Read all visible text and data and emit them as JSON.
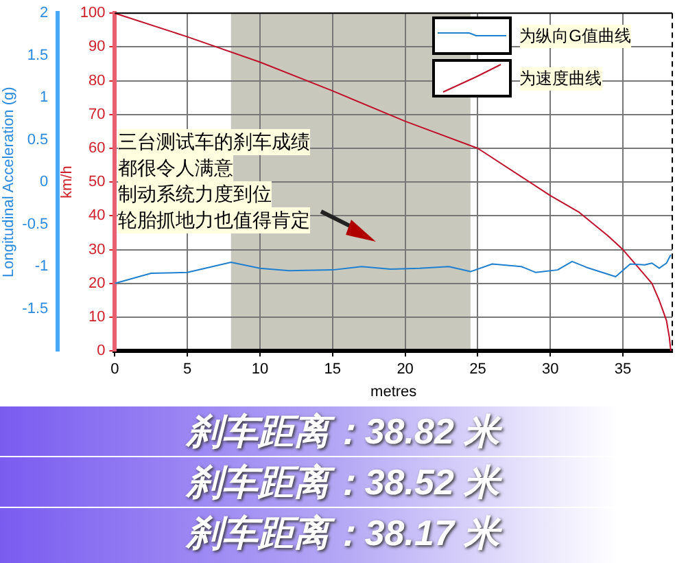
{
  "chart_data": {
    "type": "line",
    "xlabel": "metres",
    "ylabel": "km/h",
    "y2label": "Longitudinal Acceleration (g)",
    "xlim": [
      0,
      38.4
    ],
    "xticks": [
      0,
      5,
      10,
      15,
      20,
      25,
      30,
      35
    ],
    "ylim": [
      0,
      100
    ],
    "yticks": [
      0,
      10,
      20,
      30,
      40,
      50,
      60,
      70,
      80,
      90,
      100
    ],
    "y2lim": [
      -2,
      2
    ],
    "y2ticks": [
      -1.5,
      -1,
      -0.5,
      0,
      0.5,
      1,
      1.5,
      2
    ],
    "grid": true,
    "legend": "top right",
    "marker": "none",
    "line_style": "solid",
    "bands": [
      {
        "axis": "x",
        "from": 8,
        "to": 24.5,
        "color": "#c8c8bc"
      }
    ],
    "series": [
      {
        "name": "为纵向G值曲线",
        "color": "#1f7fcf",
        "axis": "y2",
        "x": [
          0,
          2.5,
          5,
          8,
          10,
          12,
          15,
          17,
          19,
          21,
          23,
          24.5,
          26,
          28,
          29,
          30.5,
          31.5,
          32.5,
          34.5,
          35.5,
          36.5,
          37,
          37.5,
          38,
          38.3
        ],
        "values": [
          -1.2,
          -1.08,
          -1.07,
          -0.95,
          -1.02,
          -1.05,
          -1.04,
          -1.0,
          -1.03,
          -1.02,
          -1.0,
          -1.06,
          -0.97,
          -1.0,
          -1.07,
          -1.04,
          -0.94,
          -1.01,
          -1.12,
          -0.97,
          -0.98,
          -0.96,
          -1.02,
          -0.96,
          -0.86
        ]
      },
      {
        "name": "为速度曲线",
        "color": "#c0102a",
        "x": [
          0,
          5,
          10,
          15,
          20,
          25,
          30,
          32,
          34,
          35,
          36,
          37,
          37.5,
          38,
          38.2,
          38.3
        ],
        "values": [
          100,
          93,
          85.5,
          77,
          68,
          60,
          46,
          41,
          34,
          30,
          25,
          20,
          15,
          9,
          4,
          0
        ]
      }
    ],
    "annotations": [
      "三台测试车的刹车成绩",
      "都很令人满意",
      "制动系统力度到位",
      "轮胎抓地力也值得肯定",
      "刹车距离：38.82 米",
      "刹车距离：38.52 米",
      "刹车距离：38.17 米"
    ]
  }
}
